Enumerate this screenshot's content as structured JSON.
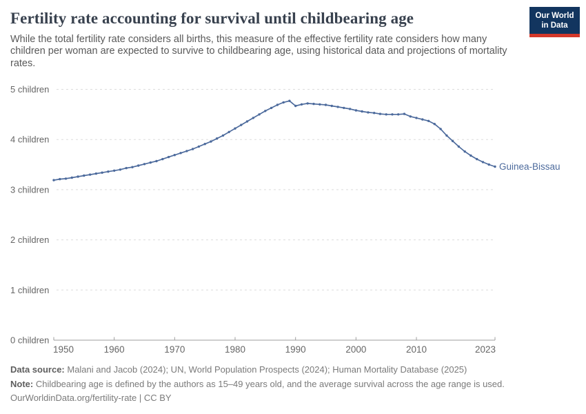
{
  "header": {
    "title": "Fertility rate accounting for survival until childbearing age",
    "subtitle": "While the total fertility rate considers all births, this measure of the effective fertility rate considers how many children per woman are expected to survive to childbearing age, using historical data and projections of mortality rates.",
    "logo": {
      "line1": "Our World",
      "line2": "in Data"
    }
  },
  "chart_data": {
    "type": "line",
    "title": "Fertility rate accounting for survival until childbearing age",
    "xlabel": "",
    "ylabel": "children",
    "xlim": [
      1950,
      2023
    ],
    "ylim": [
      0,
      5
    ],
    "grid": "horizontal-dashed",
    "legend_position": "line-end-label",
    "entity_label": "Guinea-Bissau",
    "yticks": [
      {
        "value": 0,
        "label": "0 children"
      },
      {
        "value": 1,
        "label": "1 children"
      },
      {
        "value": 2,
        "label": "2 children"
      },
      {
        "value": 3,
        "label": "3 children"
      },
      {
        "value": 4,
        "label": "4 children"
      },
      {
        "value": 5,
        "label": "5 children"
      }
    ],
    "xticks": [
      {
        "value": 1950,
        "label": "1950"
      },
      {
        "value": 1960,
        "label": "1960"
      },
      {
        "value": 1970,
        "label": "1970"
      },
      {
        "value": 1980,
        "label": "1980"
      },
      {
        "value": 1990,
        "label": "1990"
      },
      {
        "value": 2000,
        "label": "2000"
      },
      {
        "value": 2010,
        "label": "2010"
      },
      {
        "value": 2023,
        "label": "2023"
      }
    ],
    "x": [
      1950,
      1951,
      1952,
      1953,
      1954,
      1955,
      1956,
      1957,
      1958,
      1959,
      1960,
      1961,
      1962,
      1963,
      1964,
      1965,
      1966,
      1967,
      1968,
      1969,
      1970,
      1971,
      1972,
      1973,
      1974,
      1975,
      1976,
      1977,
      1978,
      1979,
      1980,
      1981,
      1982,
      1983,
      1984,
      1985,
      1986,
      1987,
      1988,
      1989,
      1990,
      1991,
      1992,
      1993,
      1994,
      1995,
      1996,
      1997,
      1998,
      1999,
      2000,
      2001,
      2002,
      2003,
      2004,
      2005,
      2006,
      2007,
      2008,
      2009,
      2010,
      2011,
      2012,
      2013,
      2014,
      2015,
      2016,
      2017,
      2018,
      2019,
      2020,
      2021,
      2022,
      2023
    ],
    "series": [
      {
        "name": "Guinea-Bissau",
        "color": "#4c6a9c",
        "values": [
          3.19,
          3.21,
          3.22,
          3.24,
          3.26,
          3.28,
          3.3,
          3.32,
          3.34,
          3.36,
          3.38,
          3.4,
          3.43,
          3.45,
          3.48,
          3.51,
          3.54,
          3.57,
          3.61,
          3.65,
          3.69,
          3.73,
          3.77,
          3.81,
          3.86,
          3.91,
          3.96,
          4.02,
          4.08,
          4.15,
          4.22,
          4.29,
          4.36,
          4.43,
          4.5,
          4.57,
          4.63,
          4.69,
          4.74,
          4.77,
          4.67,
          4.7,
          4.72,
          4.71,
          4.7,
          4.69,
          4.67,
          4.65,
          4.63,
          4.61,
          4.58,
          4.56,
          4.54,
          4.53,
          4.51,
          4.5,
          4.5,
          4.5,
          4.51,
          4.46,
          4.43,
          4.4,
          4.37,
          4.31,
          4.21,
          4.08,
          3.97,
          3.86,
          3.76,
          3.68,
          3.61,
          3.55,
          3.5,
          3.46
        ]
      }
    ]
  },
  "colors": {
    "line": "#4c6a9c",
    "gridline": "#dcdcdc",
    "axis": "#9e9e9e",
    "tick_text": "#666666"
  },
  "footer": {
    "datasource_label": "Data source:",
    "datasource_text": " Malani and Jacob (2024); UN, World Population Prospects (2024); Human Mortality Database (2025)",
    "note_label": "Note:",
    "note_text": " Childbearing age is defined by the authors as 15–49 years old, and the average survival across the age range is used.",
    "url_text": "OurWorldinData.org/fertility-rate | CC BY"
  }
}
